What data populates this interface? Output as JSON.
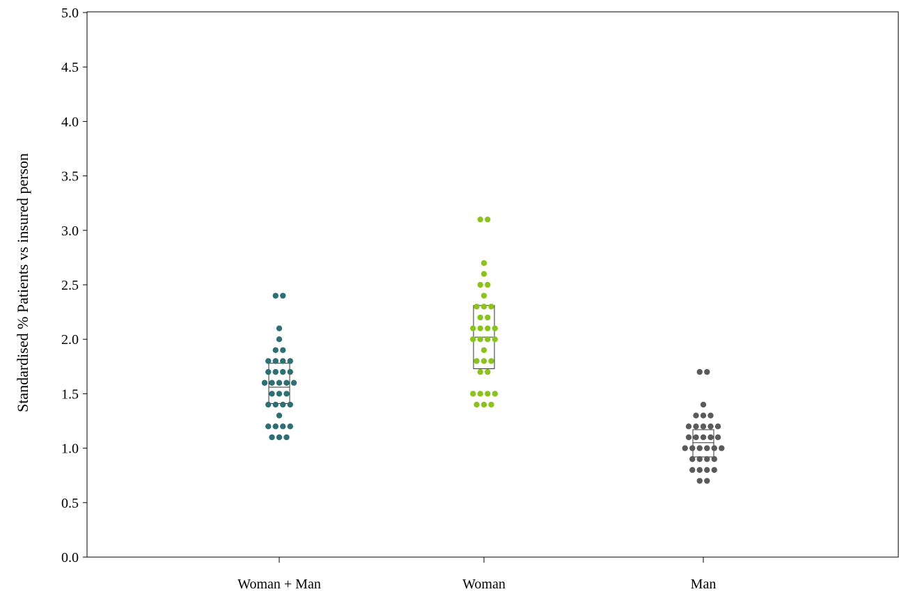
{
  "chart_data": {
    "type": "scatter",
    "subtype": "dot-plot with median and interquartile boxes",
    "ylabel": "Standardised % Patients vs insured person",
    "ylim": [
      0,
      5
    ],
    "yticks": [
      "0.0",
      "0.5",
      "1.0",
      "1.5",
      "2.0",
      "2.5",
      "3.0",
      "3.5",
      "4.0",
      "4.5",
      "5.0"
    ],
    "ytick_values": [
      0,
      0.5,
      1,
      1.5,
      2,
      2.5,
      3,
      3.5,
      4,
      4.5,
      5
    ],
    "grid": false,
    "categories": [
      "Woman + Man",
      "Woman",
      "Man"
    ],
    "series": [
      {
        "category": "Woman + Man",
        "color": "#2e6f73",
        "box": {
          "q1": 1.41,
          "median": 1.56,
          "q3": 1.78
        },
        "values": [
          2.4,
          2.4,
          2.1,
          2.0,
          1.9,
          1.9,
          1.8,
          1.8,
          1.8,
          1.8,
          1.7,
          1.7,
          1.7,
          1.7,
          1.6,
          1.6,
          1.6,
          1.6,
          1.6,
          1.5,
          1.5,
          1.5,
          1.4,
          1.4,
          1.4,
          1.4,
          1.3,
          1.2,
          1.2,
          1.2,
          1.2,
          1.1,
          1.1,
          1.1
        ]
      },
      {
        "category": "Woman",
        "color": "#8cc21e",
        "box": {
          "q1": 1.73,
          "median": 2.02,
          "q3": 2.31
        },
        "values": [
          3.1,
          3.1,
          2.7,
          2.6,
          2.5,
          2.5,
          2.4,
          2.3,
          2.3,
          2.3,
          2.2,
          2.2,
          2.1,
          2.1,
          2.1,
          2.1,
          2.0,
          2.0,
          2.0,
          2.0,
          1.9,
          1.8,
          1.8,
          1.8,
          1.7,
          1.7,
          1.5,
          1.5,
          1.5,
          1.5,
          1.4,
          1.4,
          1.4
        ]
      },
      {
        "category": "Man",
        "color": "#5a5a5a",
        "box": {
          "q1": 0.92,
          "median": 1.05,
          "q3": 1.17
        },
        "values": [
          1.7,
          1.7,
          1.4,
          1.3,
          1.3,
          1.3,
          1.2,
          1.2,
          1.2,
          1.2,
          1.2,
          1.1,
          1.1,
          1.1,
          1.1,
          1.1,
          1.0,
          1.0,
          1.0,
          1.0,
          1.0,
          1.0,
          0.9,
          0.9,
          0.9,
          0.9,
          0.8,
          0.8,
          0.8,
          0.8,
          0.7,
          0.7
        ]
      }
    ]
  }
}
